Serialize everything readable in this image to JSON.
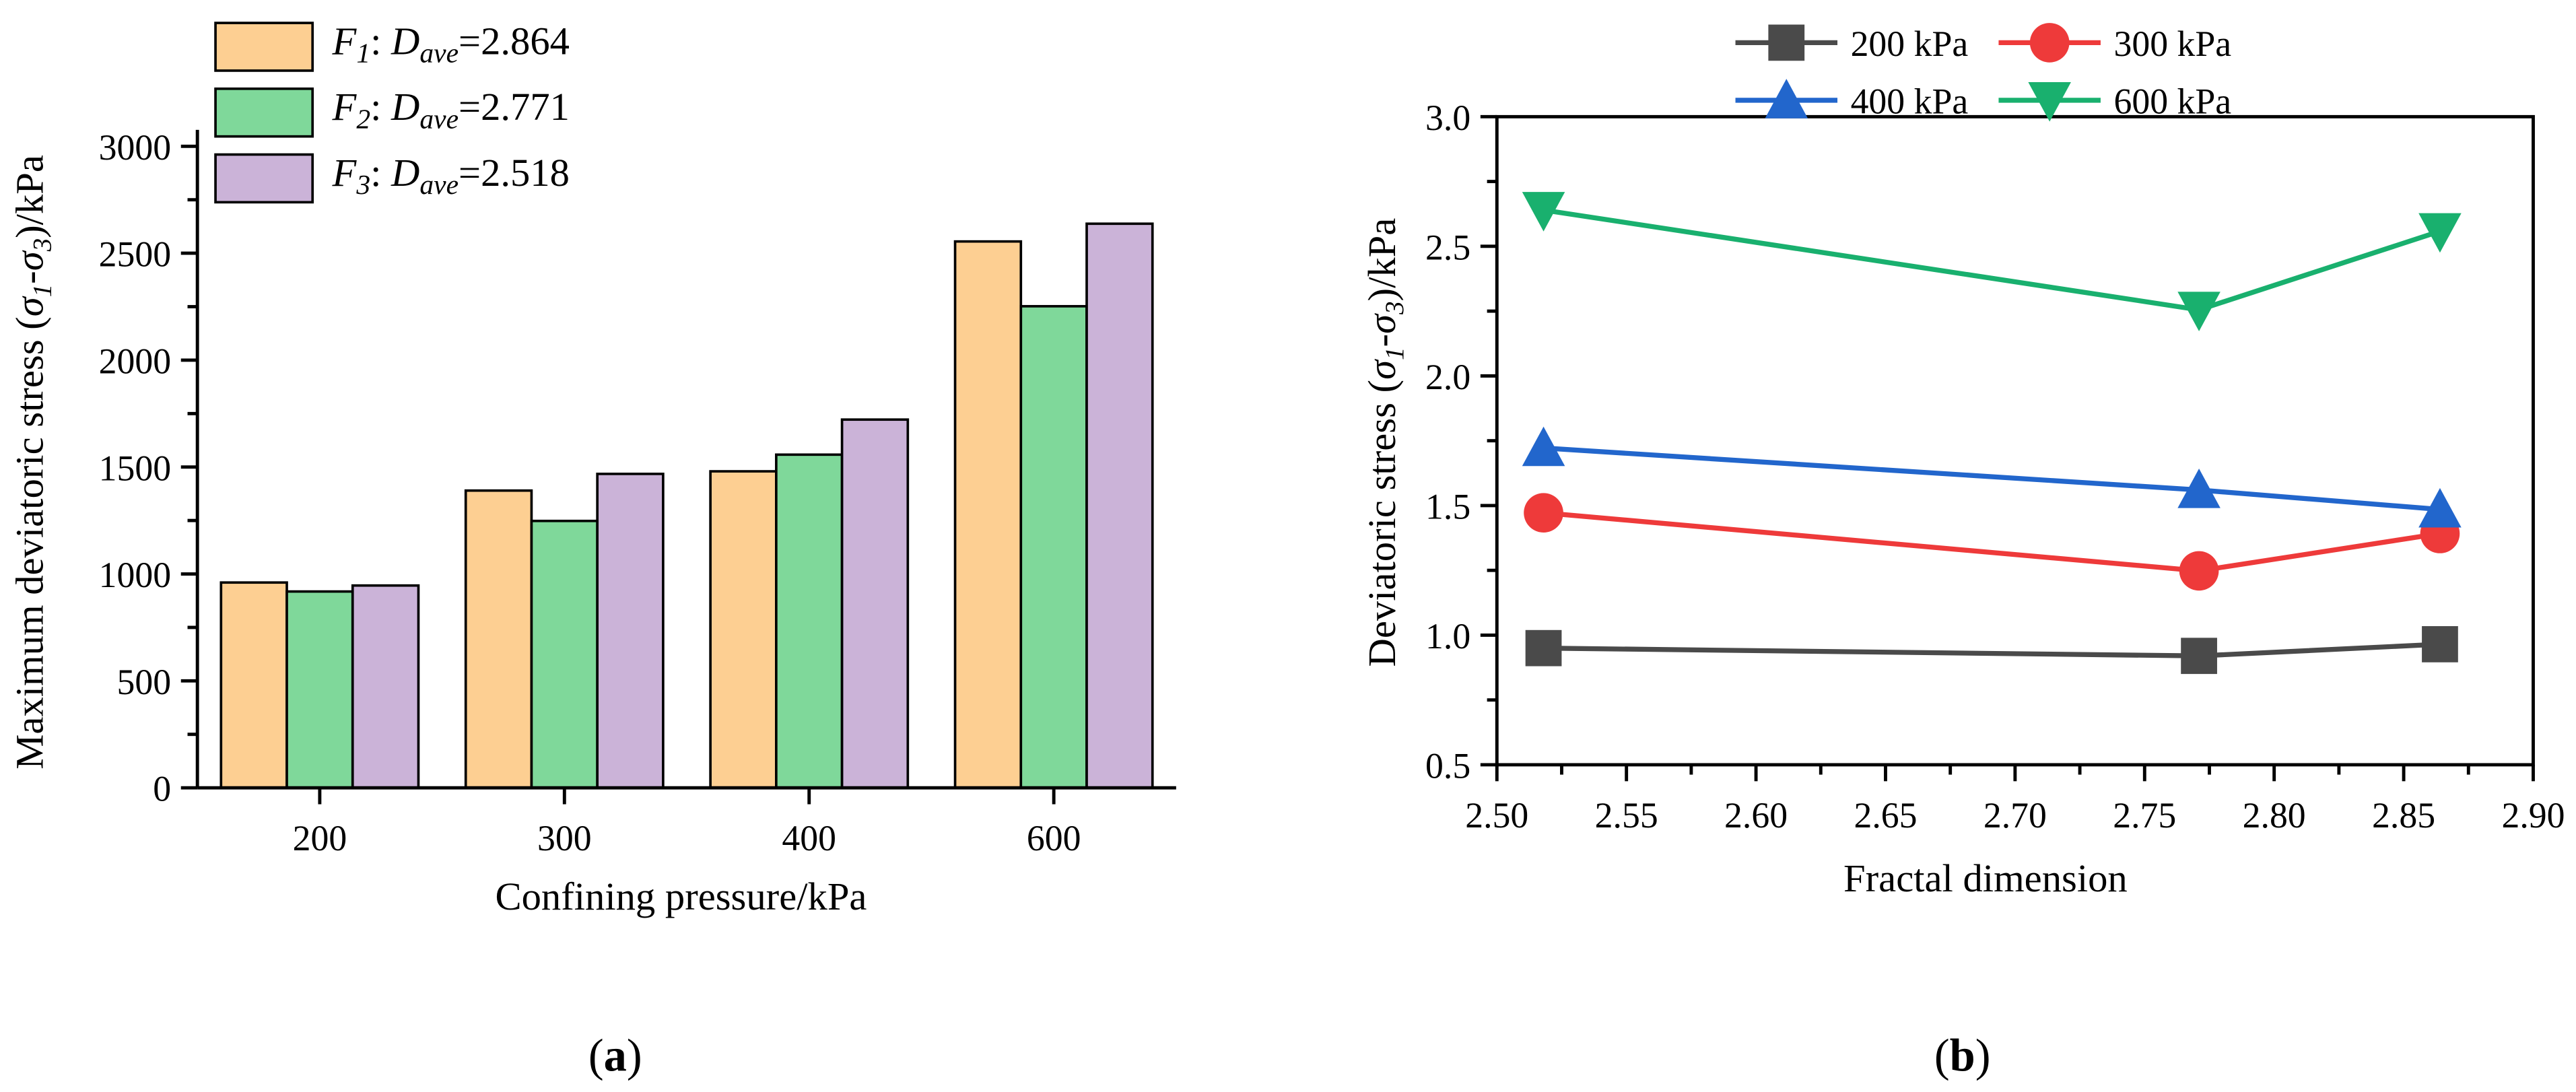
{
  "chart_data": [
    {
      "panel": "(a)",
      "panel_letter": "a",
      "type": "bar",
      "title": "",
      "xlabel": "Confining pressure/kPa",
      "ylabel": "Maximum deviatoric stress (σ1-σ3)/kPa",
      "ylabel_parts": {
        "pre": "Maximum deviatoric stress (",
        "s1": "σ",
        "s1sub": "1",
        "dash": "-",
        "s3": "σ",
        "s3sub": "3",
        "post": ")/kPa"
      },
      "categories": [
        "200",
        "300",
        "400",
        "600"
      ],
      "ylim": [
        0,
        3000
      ],
      "yticks": [
        "0",
        "500",
        "1000",
        "1500",
        "2000",
        "2500",
        "3000"
      ],
      "legend_position": "top-left",
      "series": [
        {
          "name": "F1: Dave=2.864",
          "label": {
            "f": "F",
            "fsub": "1",
            "colon": ": ",
            "d": "D",
            "dsub": "ave",
            "val": "=2.864"
          },
          "color": "#fdcf92",
          "values": [
            960,
            1390,
            1480,
            2555
          ]
        },
        {
          "name": "F2: Dave=2.771",
          "label": {
            "f": "F",
            "fsub": "2",
            "colon": ": ",
            "d": "D",
            "dsub": "ave",
            "val": "=2.771"
          },
          "color": "#7fd89a",
          "values": [
            918,
            1248,
            1558,
            2252
          ]
        },
        {
          "name": "F3: Dave=2.518",
          "label": {
            "f": "F",
            "fsub": "3",
            "colon": ": ",
            "d": "D",
            "dsub": "ave",
            "val": "=2.518"
          },
          "color": "#cbb3d8",
          "values": [
            946,
            1468,
            1722,
            2638
          ]
        }
      ]
    },
    {
      "panel": "(b)",
      "panel_letter": "b",
      "type": "line",
      "title": "",
      "xlabel": "Fractal dimension",
      "ylabel": "Deviatoric stress (σ1-σ3)/kPa",
      "ylabel_parts": {
        "pre": "Deviatoric stress (",
        "s1": "σ",
        "s1sub": "1",
        "dash": "-",
        "s3": "σ",
        "s3sub": "3",
        "post": ")/kPa"
      },
      "xlim": [
        2.5,
        2.9
      ],
      "ylim": [
        0.5,
        3.0
      ],
      "xticks": [
        "2.50",
        "2.55",
        "2.60",
        "2.65",
        "2.70",
        "2.75",
        "2.80",
        "2.85",
        "2.90"
      ],
      "yticks": [
        "0.5",
        "1.0",
        "1.5",
        "2.0",
        "2.5",
        "3.0"
      ],
      "x": [
        2.518,
        2.771,
        2.864
      ],
      "legend_position": "top",
      "series": [
        {
          "name": "200 kPa",
          "color": "#4a4a4a",
          "marker": "square",
          "values": [
            0.95,
            0.92,
            0.965
          ]
        },
        {
          "name": "300 kPa",
          "color": "#ee3a3a",
          "marker": "circle",
          "values": [
            1.472,
            1.248,
            1.392
          ]
        },
        {
          "name": "400 kPa",
          "color": "#2266cc",
          "marker": "triangle-up",
          "values": [
            1.722,
            1.56,
            1.485
          ]
        },
        {
          "name": "600 kPa",
          "color": "#19b06e",
          "marker": "triangle-down",
          "values": [
            2.64,
            2.255,
            2.558
          ]
        }
      ]
    }
  ]
}
